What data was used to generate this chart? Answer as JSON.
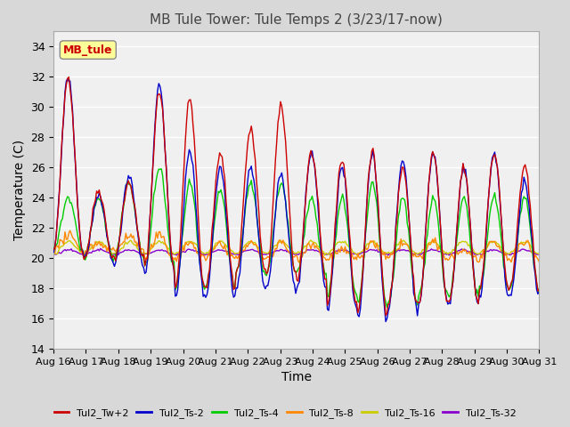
{
  "title": "MB Tule Tower: Tule Temps 2 (3/23/17-now)",
  "xlabel": "Time",
  "ylabel": "Temperature (C)",
  "ylim": [
    14,
    35
  ],
  "yticks": [
    14,
    16,
    18,
    20,
    22,
    24,
    26,
    28,
    30,
    32,
    34
  ],
  "x_labels": [
    "Aug 16",
    "Aug 17",
    "Aug 18",
    "Aug 19",
    "Aug 20",
    "Aug 21",
    "Aug 22",
    "Aug 23",
    "Aug 24",
    "Aug 25",
    "Aug 26",
    "Aug 27",
    "Aug 28",
    "Aug 29",
    "Aug 30",
    "Aug 31"
  ],
  "legend_label": "MB_tule",
  "series_names": [
    "Tul2_Tw+2",
    "Tul2_Ts-2",
    "Tul2_Ts-4",
    "Tul2_Ts-8",
    "Tul2_Ts-16",
    "Tul2_Ts-32"
  ],
  "series_colors": [
    "#cc0000",
    "#0000cc",
    "#00cc00",
    "#ff8800",
    "#cccc00",
    "#8800cc"
  ],
  "background_color": "#d8d8d8",
  "plot_bg_color": "#f0f0f0",
  "grid_color": "#ffffff"
}
